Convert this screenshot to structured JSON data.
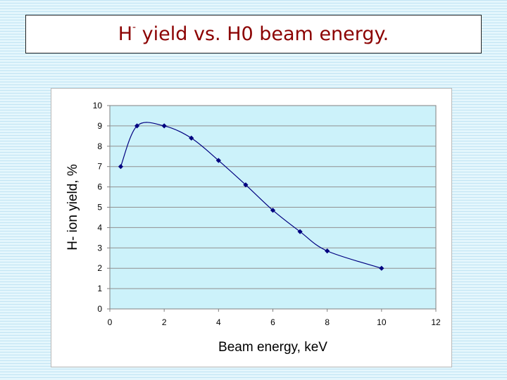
{
  "slide": {
    "title_main": "H",
    "title_sup": "-",
    "title_rest": " yield vs. H0 beam energy."
  },
  "chart_data": {
    "type": "line",
    "title": "",
    "xlabel": "Beam energy, keV",
    "ylabel": "H- ion yield, %",
    "xlim": [
      0,
      12
    ],
    "ylim": [
      0,
      10
    ],
    "xticks": [
      0,
      2,
      4,
      6,
      8,
      10,
      12
    ],
    "yticks": [
      0,
      1,
      2,
      3,
      4,
      5,
      6,
      7,
      8,
      9,
      10
    ],
    "grid": true,
    "smooth": true,
    "plot_background": "#ccf2fa",
    "line_color": "#000080",
    "marker": "diamond",
    "series": [
      {
        "x": [
          0.4,
          1.0,
          2.0,
          3.0,
          4.0,
          5.0,
          6.0,
          7.0,
          8.0,
          10.0
        ],
        "y": [
          7.0,
          9.0,
          9.0,
          8.4,
          7.3,
          6.1,
          4.85,
          3.8,
          2.85,
          2.0
        ]
      }
    ]
  }
}
